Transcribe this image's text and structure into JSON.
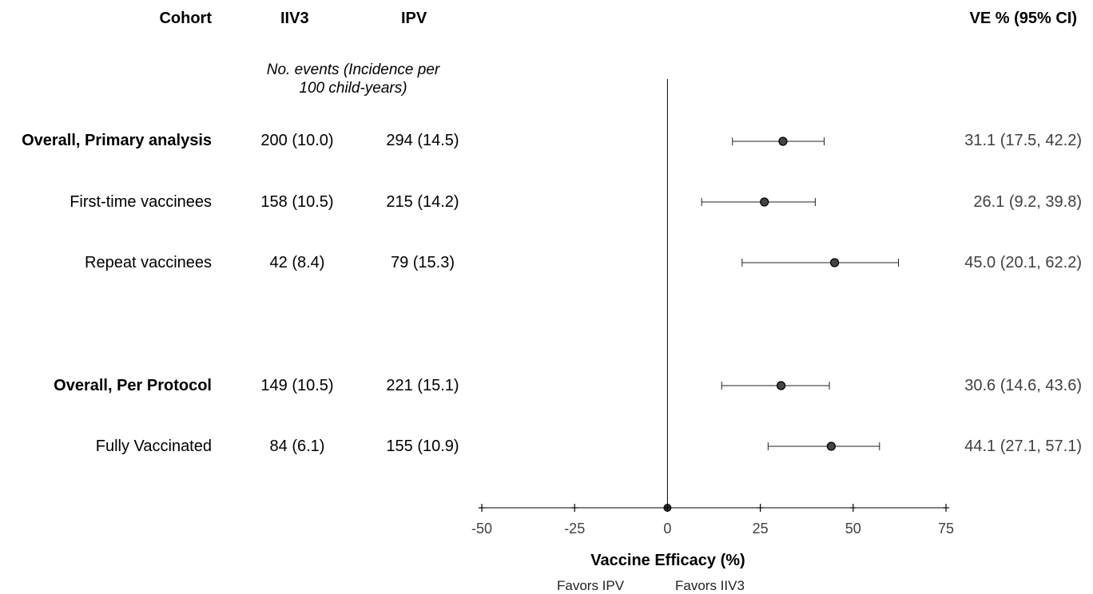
{
  "headers": {
    "cohort": "Cohort",
    "iiv3": "IIV3",
    "ipv": "IPV",
    "ve": "VE % (95% CI)",
    "subheader_line1": "No. events (Incidence per",
    "subheader_line2": "100 child-years)"
  },
  "chart_data": {
    "type": "forest",
    "xlabel": "Vaccine Efficacy (%)",
    "xlim": [
      -50,
      75
    ],
    "xticks": [
      -50,
      -25,
      0,
      25,
      50,
      75
    ],
    "reference_line": 0,
    "favors_left": "Favors IPV",
    "favors_right": "Favors IIV3",
    "rows": [
      {
        "cohort": "Overall, Primary analysis",
        "bold": true,
        "iiv3": "200 (10.0)",
        "ipv": "294 (14.5)",
        "ve": 31.1,
        "lo": 17.5,
        "hi": 42.2,
        "ve_text": "31.1 (17.5, 42.2)"
      },
      {
        "cohort": "First-time vaccinees",
        "bold": false,
        "iiv3": "158 (10.5)",
        "ipv": "215 (14.2)",
        "ve": 26.1,
        "lo": 9.2,
        "hi": 39.8,
        "ve_text": "26.1 (9.2, 39.8)"
      },
      {
        "cohort": "Repeat vaccinees",
        "bold": false,
        "iiv3": "42 (8.4)",
        "ipv": "79 (15.3)",
        "ve": 45.0,
        "lo": 20.1,
        "hi": 62.2,
        "ve_text": "45.0 (20.1, 62.2)"
      },
      {
        "cohort": "Overall, Per Protocol",
        "bold": true,
        "iiv3": "149 (10.5)",
        "ipv": "221 (15.1)",
        "ve": 30.6,
        "lo": 14.6,
        "hi": 43.6,
        "ve_text": "30.6 (14.6, 43.6)"
      },
      {
        "cohort": "Fully Vaccinated",
        "bold": false,
        "iiv3": "84 (6.1)",
        "ipv": "155 (10.9)",
        "ve": 44.1,
        "lo": 27.1,
        "hi": 57.1,
        "ve_text": "44.1 (27.1, 57.1)"
      }
    ]
  }
}
